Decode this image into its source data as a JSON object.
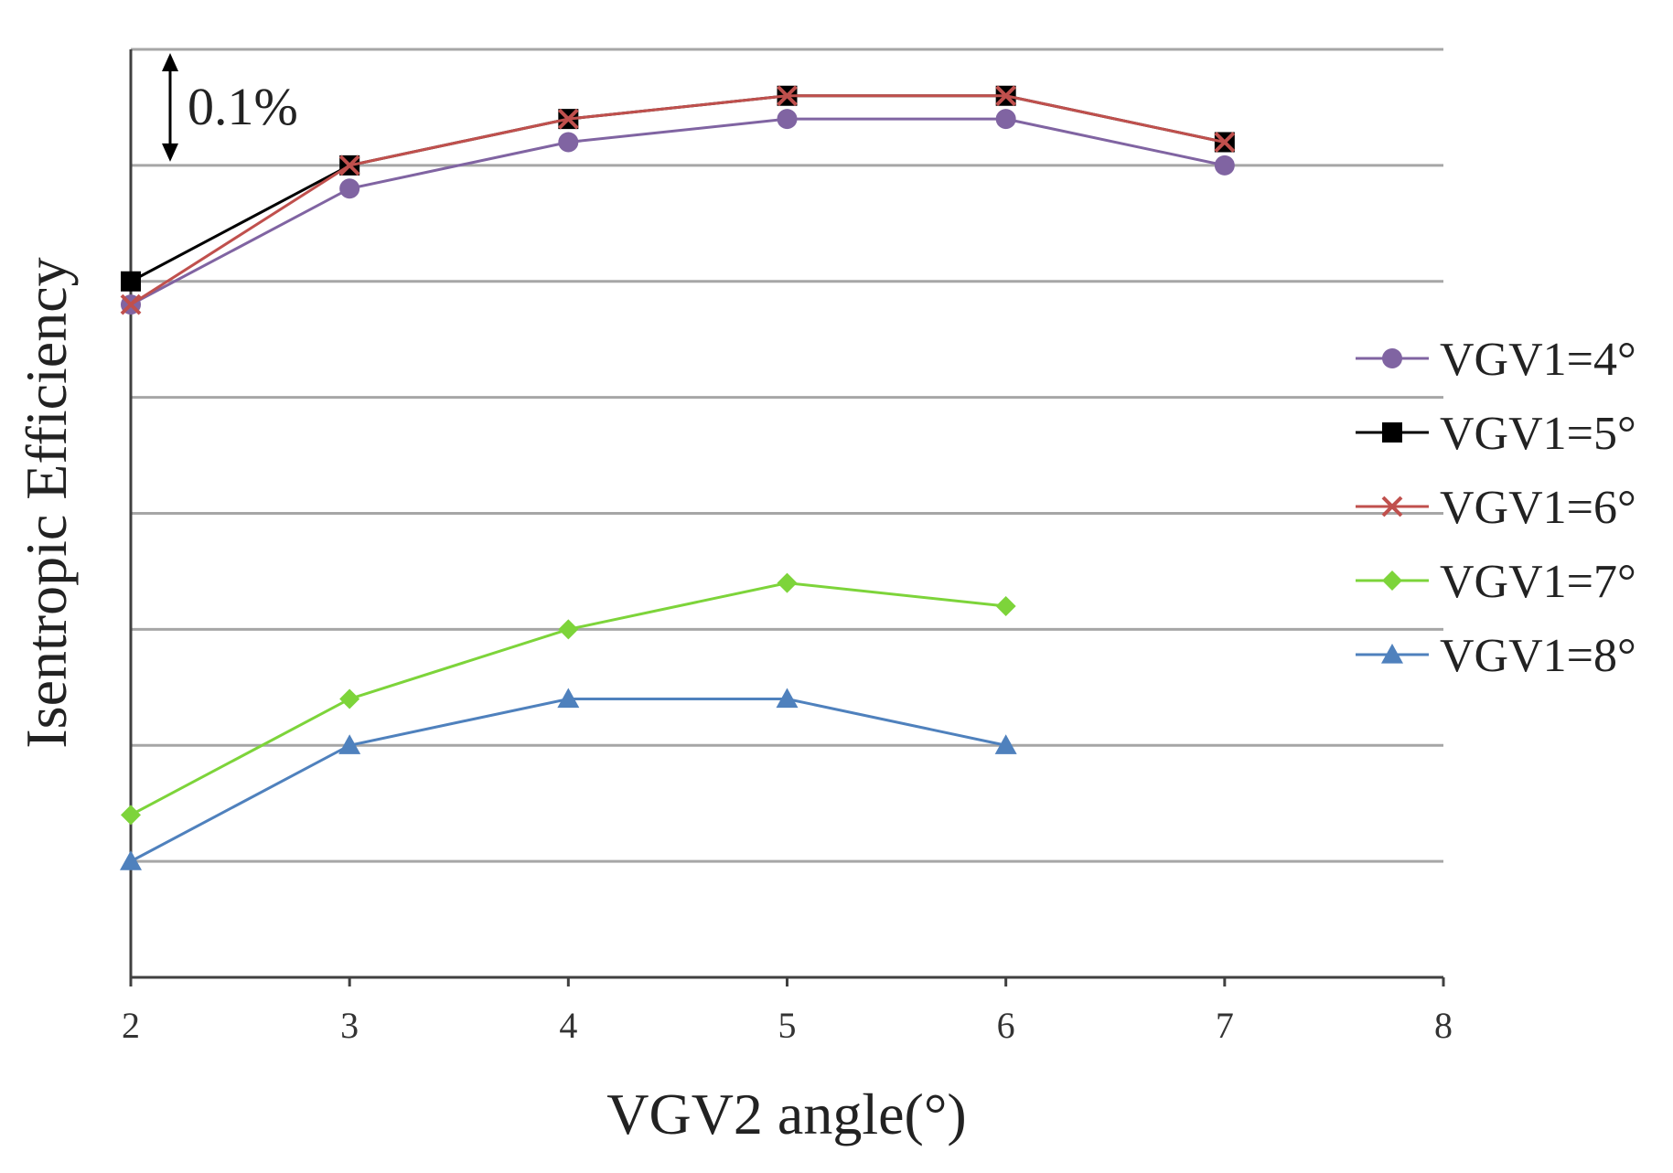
{
  "chart_data": {
    "type": "line",
    "title": "",
    "xlabel": "VGV2 angle(°)",
    "ylabel": "Isentropic  Efficiency",
    "xlim": [
      2,
      8
    ],
    "x_ticks": [
      "2",
      "3",
      "4",
      "5",
      "6",
      "7",
      "8"
    ],
    "ylim": [
      0,
      0.8
    ],
    "y_unit_note": "relative efficiency, % points above baseline (gridline spacing 0.1%)",
    "grid": true,
    "legend_position": "right",
    "annotation": {
      "text": "0.1%",
      "description": "double arrow spanning one gridline interval"
    },
    "series": [
      {
        "name": "VGV1=4°",
        "color": "#8064A2",
        "marker": "circle",
        "x": [
          2,
          3,
          4,
          5,
          6,
          7
        ],
        "y": [
          0.58,
          0.68,
          0.72,
          0.74,
          0.74,
          0.7
        ]
      },
      {
        "name": "VGV1=5°",
        "color": "#000000",
        "marker": "square",
        "x": [
          2,
          3,
          4,
          5,
          6,
          7
        ],
        "y": [
          0.6,
          0.7,
          0.74,
          0.76,
          0.76,
          0.72
        ]
      },
      {
        "name": "VGV1=6°",
        "color": "#C0504D",
        "marker": "x",
        "x": [
          2,
          3,
          4,
          5,
          6,
          7
        ],
        "y": [
          0.58,
          0.7,
          0.74,
          0.76,
          0.76,
          0.72
        ]
      },
      {
        "name": "VGV1=7°",
        "color": "#7DD43A",
        "marker": "diamond",
        "x": [
          2,
          3,
          4,
          5,
          6
        ],
        "y": [
          0.14,
          0.24,
          0.3,
          0.34,
          0.32
        ]
      },
      {
        "name": "VGV1=8°",
        "color": "#4F81BD",
        "marker": "triangle",
        "x": [
          2,
          3,
          4,
          5,
          6
        ],
        "y": [
          0.1,
          0.2,
          0.24,
          0.24,
          0.2
        ]
      }
    ]
  }
}
